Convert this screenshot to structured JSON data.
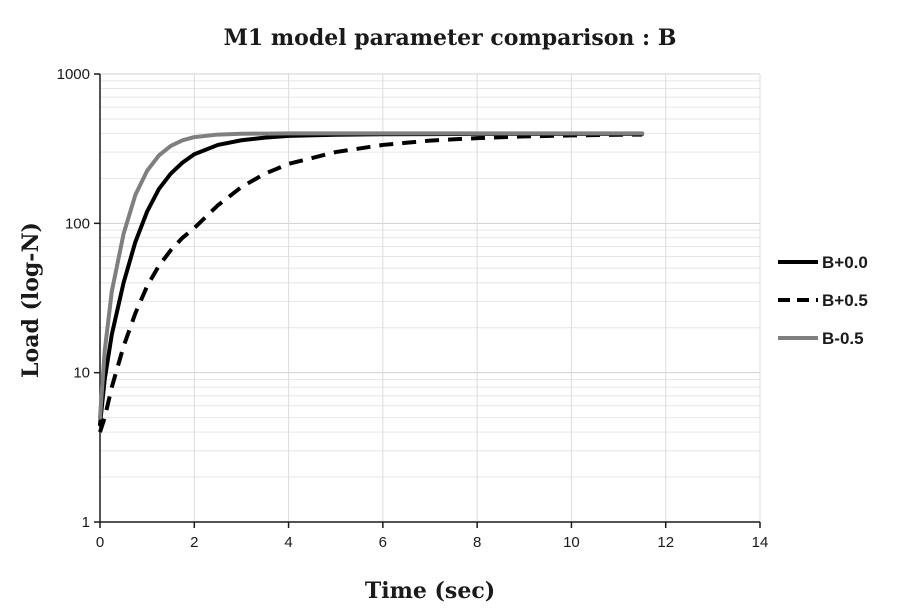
{
  "chart_data": {
    "type": "line",
    "title": "M1 model parameter comparison : B",
    "xlabel": "Time (sec)",
    "ylabel": "Load (log-N)",
    "xlim": [
      0,
      14
    ],
    "ylim": [
      1,
      1000
    ],
    "yscale": "log",
    "x_ticks": [
      "0",
      "2",
      "4",
      "6",
      "8",
      "10",
      "12",
      "14"
    ],
    "y_ticks": [
      "1",
      "10",
      "100",
      "1000"
    ],
    "grid": true,
    "legend_position": "right",
    "series": [
      {
        "name": "B+0.0",
        "color": "#000000",
        "style": "solid",
        "x": [
          0,
          0.1,
          0.25,
          0.5,
          0.75,
          1,
          1.25,
          1.5,
          1.75,
          2,
          2.5,
          3,
          3.5,
          4,
          5,
          6,
          7,
          8,
          9,
          10,
          11,
          11.5
        ],
        "y": [
          4.5,
          9,
          18,
          40,
          75,
          120,
          170,
          215,
          255,
          290,
          335,
          360,
          375,
          385,
          392,
          395,
          396,
          397,
          397,
          397,
          397,
          397
        ]
      },
      {
        "name": "B+0.5",
        "color": "#000000",
        "style": "dashed",
        "x": [
          0,
          0.1,
          0.25,
          0.5,
          0.75,
          1,
          1.25,
          1.5,
          1.75,
          2,
          2.5,
          3,
          3.5,
          4,
          5,
          6,
          7,
          8,
          9,
          10,
          11,
          11.5
        ],
        "y": [
          4,
          5,
          8,
          15,
          25,
          38,
          52,
          66,
          80,
          93,
          132,
          175,
          215,
          250,
          300,
          335,
          358,
          372,
          382,
          388,
          392,
          393
        ]
      },
      {
        "name": "B-0.5",
        "color": "#7f7f7f",
        "style": "solid",
        "x": [
          0,
          0.1,
          0.25,
          0.5,
          0.75,
          1,
          1.25,
          1.5,
          1.75,
          2,
          2.5,
          3,
          3.5,
          4,
          5,
          6,
          7,
          8,
          9,
          10,
          11,
          11.5
        ],
        "y": [
          5,
          14,
          35,
          85,
          155,
          225,
          285,
          330,
          360,
          378,
          393,
          398,
          399,
          400,
          400,
          400,
          400,
          400,
          400,
          400,
          400,
          400
        ]
      }
    ]
  }
}
